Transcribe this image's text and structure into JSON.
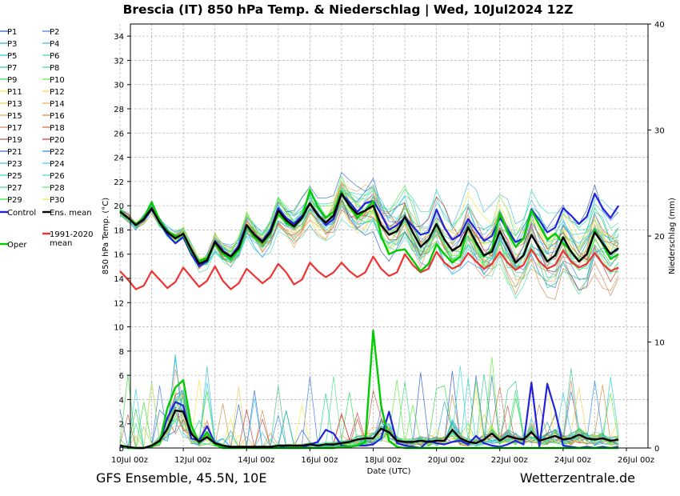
{
  "chart_data": {
    "type": "line",
    "title": "Brescia  (IT)  850 hPa Temp. & Niederschlag | Wed, 10Jul2024 12Z",
    "xlabel": "Date (UTC)",
    "ylabel": "850 hPa Temp. (°C)",
    "y2label": "Niederschlag (mm)",
    "x_range_hours": [
      0,
      384
    ],
    "x_tick_labels": [
      {
        "h": 0,
        "label": "10Jul 00z"
      },
      {
        "h": 48,
        "label": "12Jul 00z"
      },
      {
        "h": 96,
        "label": "14Jul 00z"
      },
      {
        "h": 144,
        "label": "16Jul 00z"
      },
      {
        "h": 192,
        "label": "18Jul 00z"
      },
      {
        "h": 240,
        "label": "20Jul 00z"
      },
      {
        "h": 288,
        "label": "22Jul 00z"
      },
      {
        "h": 336,
        "label": "24Jul 00z"
      },
      {
        "h": 384,
        "label": "26Jul 00z"
      }
    ],
    "ylim": [
      0,
      35
    ],
    "y_ticks": [
      0,
      2,
      4,
      6,
      8,
      10,
      12,
      14,
      16,
      18,
      20,
      22,
      24,
      26,
      28,
      30,
      32,
      34
    ],
    "y2lim": [
      0,
      40
    ],
    "y2_ticks": [
      0,
      10,
      20,
      30,
      40
    ],
    "grid": true,
    "legend_position": "left",
    "time_step_hours": 6,
    "temp_series": [
      {
        "name": "Control",
        "color": "#2222dd",
        "values": [
          19.6,
          19.0,
          18.4,
          18.8,
          19.7,
          18.6,
          17.6,
          16.9,
          17.4,
          16.0,
          15.0,
          15.4,
          17.1,
          16.3,
          15.8,
          16.7,
          18.4,
          17.6,
          17.1,
          18.0,
          19.8,
          19.0,
          18.5,
          19.2,
          20.2,
          19.3,
          18.4,
          18.9,
          21.0,
          20.3,
          19.5,
          20.2,
          20.4,
          19.3,
          18.0,
          18.4,
          19.0,
          18.3,
          17.6,
          17.8,
          19.7,
          18.2,
          17.2,
          17.6,
          18.9,
          18.0,
          17.1,
          17.5,
          19.0,
          18.0,
          17.0,
          17.3,
          19.7,
          18.8,
          17.8,
          18.2,
          19.8,
          19.2,
          18.5,
          19.1,
          21.0,
          19.8,
          19.0,
          20.0
        ]
      },
      {
        "name": "Ens. mean",
        "color": "#000000",
        "values": [
          19.5,
          19.0,
          18.4,
          18.9,
          19.8,
          18.6,
          17.8,
          17.3,
          17.7,
          16.4,
          15.2,
          15.5,
          17.0,
          16.2,
          15.8,
          16.5,
          18.4,
          17.6,
          17.0,
          17.8,
          19.6,
          18.8,
          18.3,
          19.0,
          20.2,
          19.2,
          18.6,
          19.2,
          21.0,
          20.0,
          19.3,
          19.6,
          20.0,
          18.4,
          17.6,
          17.9,
          19.1,
          17.8,
          16.6,
          17.2,
          18.5,
          17.2,
          16.3,
          16.7,
          18.2,
          17.0,
          15.9,
          16.2,
          17.9,
          16.6,
          15.3,
          15.9,
          17.6,
          16.5,
          15.4,
          15.9,
          17.4,
          16.2,
          15.4,
          16.0,
          17.8,
          16.9,
          16.0,
          16.5
        ]
      },
      {
        "name": "Oper",
        "color": "#00cc00",
        "values": [
          19.6,
          19.0,
          18.5,
          19.0,
          20.3,
          18.8,
          17.9,
          17.5,
          17.6,
          16.2,
          15.4,
          15.7,
          16.9,
          16.0,
          15.6,
          16.3,
          18.3,
          17.4,
          16.9,
          17.7,
          19.3,
          18.6,
          18.2,
          19.0,
          21.3,
          19.9,
          19.0,
          19.5,
          21.2,
          19.9,
          19.0,
          19.6,
          20.4,
          17.5,
          16.0,
          16.3,
          16.4,
          15.5,
          14.6,
          15.2,
          16.8,
          16.0,
          15.3,
          15.8,
          18.3,
          16.8,
          15.8,
          16.4,
          19.4,
          17.8,
          16.6,
          17.3,
          19.6,
          18.4,
          17.2,
          17.7,
          16.9,
          16.3,
          15.4,
          16.0,
          18.0,
          16.8,
          15.6,
          16.0
        ]
      },
      {
        "name": "1991-2020 mean",
        "color": "#ee3333",
        "values": [
          14.6,
          13.9,
          13.1,
          13.4,
          14.6,
          13.9,
          13.2,
          13.7,
          14.9,
          14.1,
          13.3,
          13.8,
          15.0,
          13.8,
          13.1,
          13.6,
          14.8,
          14.2,
          13.6,
          14.1,
          15.2,
          14.5,
          13.5,
          13.9,
          15.3,
          14.6,
          14.1,
          14.5,
          15.3,
          14.6,
          14.1,
          14.5,
          15.8,
          14.8,
          14.2,
          14.5,
          16.0,
          15.1,
          14.5,
          14.8,
          16.2,
          15.3,
          14.8,
          15.1,
          16.1,
          15.4,
          14.8,
          15.2,
          16.2,
          15.3,
          14.7,
          15.1,
          16.4,
          15.4,
          14.8,
          15.1,
          16.3,
          15.4,
          14.9,
          15.2,
          16.1,
          15.2,
          14.6,
          14.9
        ]
      }
    ],
    "precip_series": [
      {
        "name": "Control",
        "color": "#2222dd",
        "values": [
          0.1,
          0,
          0,
          0,
          0.2,
          0.5,
          2.5,
          3.8,
          3.5,
          0.8,
          0.6,
          1.8,
          0.4,
          0.2,
          0,
          0,
          0.1,
          0,
          0,
          0,
          0.2,
          0,
          0,
          0,
          0.3,
          0.5,
          1.5,
          1.2,
          0.2,
          0.1,
          0.2,
          0.2,
          0.3,
          0.8,
          3.0,
          0.4,
          0.2,
          0.1,
          0,
          0.6,
          0.4,
          0.3,
          0.5,
          0.6,
          0.3,
          1.0,
          0.4,
          0.2,
          0.1,
          0.3,
          0.6,
          0.3,
          5.4,
          0.1,
          5.3,
          3.1,
          0.2,
          0.1,
          0,
          0.1,
          0,
          0.1,
          0,
          0.1
        ]
      },
      {
        "name": "Ens. mean",
        "color": "#000000",
        "values": [
          0.2,
          0.1,
          0,
          0,
          0.2,
          0.6,
          1.6,
          3.1,
          3.0,
          1.2,
          0.5,
          0.9,
          0.4,
          0.2,
          0.1,
          0.1,
          0.1,
          0.1,
          0.1,
          0.1,
          0.2,
          0.2,
          0.2,
          0.2,
          0.3,
          0.2,
          0.3,
          0.3,
          0.4,
          0.5,
          0.7,
          0.8,
          0.8,
          1.6,
          1.3,
          0.6,
          0.5,
          0.5,
          0.6,
          0.5,
          0.6,
          0.6,
          1.5,
          0.8,
          0.5,
          0.4,
          0.7,
          1.2,
          0.6,
          1.0,
          0.8,
          0.7,
          1.3,
          0.6,
          0.8,
          1.0,
          0.7,
          0.8,
          1.1,
          0.8,
          0.7,
          0.8,
          0.6,
          0.7
        ]
      },
      {
        "name": "Oper",
        "color": "#00cc00",
        "values": [
          0.2,
          0,
          0,
          0,
          0.1,
          0.5,
          3.3,
          5.0,
          5.6,
          1.9,
          0.4,
          1.3,
          0.3,
          0,
          0,
          0,
          0,
          0,
          0,
          0,
          0,
          0,
          0,
          0,
          0,
          0,
          0,
          0,
          0.1,
          0.1,
          0.2,
          0.5,
          9.7,
          3.5,
          0.6,
          0.1,
          0,
          0,
          0,
          0,
          0,
          0,
          0,
          0,
          0,
          0,
          0,
          0,
          0,
          0,
          0,
          0,
          0,
          0,
          0,
          0,
          0,
          0,
          0,
          0,
          0,
          0,
          0,
          0
        ]
      }
    ],
    "ensemble_members": [
      "P1",
      "P2",
      "P3",
      "P4",
      "P5",
      "P6",
      "P7",
      "P8",
      "P9",
      "P10",
      "P11",
      "P12",
      "P13",
      "P14",
      "P15",
      "P16",
      "P17",
      "P18",
      "P19",
      "P20",
      "P21",
      "P22",
      "P23",
      "P24",
      "P25",
      "P26",
      "P27",
      "P28",
      "P29",
      "P30"
    ],
    "member_colors": [
      "#2255cc",
      "#3377dd",
      "#22aacc",
      "#33bbdd",
      "#22cccc",
      "#33ddaa",
      "#22cc88",
      "#33dd77",
      "#22dd44",
      "#55ee33",
      "#eeee33",
      "#ffdd44",
      "#eecc55",
      "#eeaa55",
      "#ddaa66",
      "#cc8844",
      "#dd8855",
      "#cc6644",
      "#bb5544",
      "#cc3333",
      "#3366cc",
      "#2288ee",
      "#44bbdd",
      "#33ccee",
      "#33ddcc",
      "#44ddbb",
      "#44dd88",
      "#55ee66",
      "#33dd33",
      "#eeee44"
    ],
    "legend": [
      {
        "label": "P1",
        "color": "#2255cc"
      },
      {
        "label": "P2",
        "color": "#3377dd"
      },
      {
        "label": "P3",
        "color": "#22aacc"
      },
      {
        "label": "P4",
        "color": "#33bbdd"
      },
      {
        "label": "P5",
        "color": "#22cccc"
      },
      {
        "label": "P6",
        "color": "#33ddaa"
      },
      {
        "label": "P7",
        "color": "#22cc88"
      },
      {
        "label": "P8",
        "color": "#33dd77"
      },
      {
        "label": "P9",
        "color": "#22dd44"
      },
      {
        "label": "P10",
        "color": "#55ee33"
      },
      {
        "label": "P11",
        "color": "#eeee33"
      },
      {
        "label": "P12",
        "color": "#ffdd44"
      },
      {
        "label": "P13",
        "color": "#eecc55"
      },
      {
        "label": "P14",
        "color": "#eeaa55"
      },
      {
        "label": "P15",
        "color": "#ddaa66"
      },
      {
        "label": "P16",
        "color": "#cc8844"
      },
      {
        "label": "P17",
        "color": "#dd8855"
      },
      {
        "label": "P18",
        "color": "#cc6644"
      },
      {
        "label": "P19",
        "color": "#bb5544"
      },
      {
        "label": "P20",
        "color": "#cc3333"
      },
      {
        "label": "P21",
        "color": "#3366cc"
      },
      {
        "label": "P22",
        "color": "#2288ee"
      },
      {
        "label": "P23",
        "color": "#44bbdd"
      },
      {
        "label": "P24",
        "color": "#33ccee"
      },
      {
        "label": "P25",
        "color": "#33ddcc"
      },
      {
        "label": "P26",
        "color": "#44ddbb"
      },
      {
        "label": "P27",
        "color": "#44dd88"
      },
      {
        "label": "P28",
        "color": "#55ee66"
      },
      {
        "label": "P29",
        "color": "#33dd33"
      },
      {
        "label": "P30",
        "color": "#eeee44"
      },
      {
        "label": "Control",
        "color": "#2222dd"
      },
      {
        "label": "Ens. mean",
        "color": "#000000"
      },
      {
        "label": "Oper",
        "color": "#00cc00"
      },
      {
        "label": "1991-2020\nmean",
        "color": "#ee3333"
      }
    ]
  },
  "footer": {
    "left": "GFS Ensemble, 45.5N, 10E",
    "right": "Wetterzentrale.de"
  }
}
